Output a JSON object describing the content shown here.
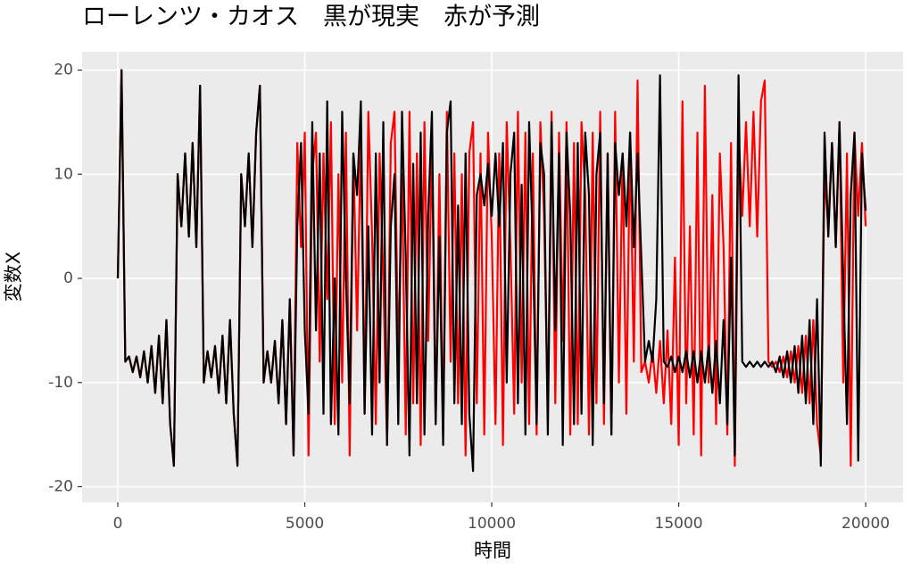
{
  "chart_data": {
    "type": "line",
    "title": "ローレンツ・カオス　黒が現実　赤が予測",
    "x_label": "時間",
    "y_label": "変数X",
    "x": [
      0,
      100,
      200,
      300,
      400,
      500,
      600,
      700,
      800,
      900,
      1000,
      1100,
      1200,
      1300,
      1400,
      1500,
      1600,
      1700,
      1800,
      1900,
      2000,
      2100,
      2200,
      2300,
      2400,
      2500,
      2600,
      2700,
      2800,
      2900,
      3000,
      3100,
      3200,
      3300,
      3400,
      3500,
      3600,
      3700,
      3800,
      3900,
      4000,
      4100,
      4200,
      4300,
      4400,
      4500,
      4600,
      4700,
      4800,
      4900,
      5000,
      5100,
      5200,
      5300,
      5400,
      5500,
      5600,
      5700,
      5800,
      5900,
      6000,
      6100,
      6200,
      6300,
      6400,
      6500,
      6600,
      6700,
      6800,
      6900,
      7000,
      7100,
      7200,
      7300,
      7400,
      7500,
      7600,
      7700,
      7800,
      7900,
      8000,
      8100,
      8200,
      8300,
      8400,
      8500,
      8600,
      8700,
      8800,
      8900,
      9000,
      9100,
      9200,
      9300,
      9400,
      9500,
      9600,
      9700,
      9800,
      9900,
      10000,
      10100,
      10200,
      10300,
      10400,
      10500,
      10600,
      10700,
      10800,
      10900,
      11000,
      11100,
      11200,
      11300,
      11400,
      11500,
      11600,
      11700,
      11800,
      11900,
      12000,
      12100,
      12200,
      12300,
      12400,
      12500,
      12600,
      12700,
      12800,
      12900,
      13000,
      13100,
      13200,
      13300,
      13400,
      13500,
      13600,
      13700,
      13800,
      13900,
      14000,
      14100,
      14200,
      14300,
      14400,
      14500,
      14600,
      14700,
      14800,
      14900,
      15000,
      15100,
      15200,
      15300,
      15400,
      15500,
      15600,
      15700,
      15800,
      15900,
      16000,
      16100,
      16200,
      16300,
      16400,
      16500,
      16600,
      16700,
      16800,
      16900,
      17000,
      17100,
      17200,
      17300,
      17400,
      17500,
      17600,
      17700,
      17800,
      17900,
      18000,
      18100,
      18200,
      18300,
      18400,
      18500,
      18600,
      18700,
      18800,
      18900,
      19000,
      19100,
      19200,
      19300,
      19400,
      19500,
      19600,
      19700,
      19800,
      19900,
      20000
    ],
    "series": [
      {
        "color": "#ff0000",
        "values": [
          0,
          20,
          -8,
          -7.5,
          -9,
          -7.5,
          -9.5,
          -7,
          -10,
          -6.5,
          -11,
          -5.5,
          -12,
          -4,
          -14,
          -18,
          10,
          5,
          12,
          4,
          13,
          3,
          18.5,
          -10,
          -7,
          -9.5,
          -6.5,
          -11,
          -5.5,
          -12,
          -4,
          -13,
          -18,
          10,
          5,
          12,
          3,
          14,
          18.5,
          -10,
          -7,
          -10,
          -6,
          -12,
          -4,
          -14,
          -2,
          -17,
          13,
          3,
          14,
          -17,
          10,
          14,
          -8,
          12,
          -2,
          15,
          -14,
          10,
          -10,
          14,
          -17,
          12,
          -5,
          14,
          -13,
          16,
          4,
          -14,
          12,
          0,
          -16,
          13,
          16,
          -8,
          10,
          -15,
          16,
          -12,
          12,
          -16,
          15,
          -6,
          13,
          -14,
          10,
          -15,
          16,
          -8,
          12,
          -12,
          10,
          -17,
          12,
          15,
          -12,
          12,
          -15,
          14,
          4,
          -14,
          12,
          -16,
          15,
          3,
          -13,
          16,
          -10,
          14,
          -14,
          12,
          -15,
          15,
          6,
          -13,
          16,
          -12,
          14,
          -6,
          15,
          -15,
          13,
          -14,
          15,
          8,
          -15,
          14,
          -12,
          16,
          -14,
          12,
          -15,
          16,
          -10,
          12,
          -13,
          14,
          -8,
          19,
          -9,
          -8,
          -10,
          -7,
          -11,
          -6,
          -12,
          -5,
          -14,
          2,
          -16,
          17,
          -12,
          5,
          -15,
          14,
          -17,
          18.5,
          -10,
          8,
          -14,
          12,
          3,
          -15,
          13,
          -18,
          14,
          6,
          15,
          5,
          16,
          4,
          17,
          19,
          -8,
          -8.5,
          -8,
          -9,
          -7.5,
          -9.5,
          -7,
          -10,
          -6.5,
          -11,
          -5.5,
          -12,
          -4,
          -14,
          -17,
          10,
          5,
          13,
          3,
          15,
          -10,
          12,
          -18,
          14,
          6,
          13,
          5
        ]
      },
      {
        "color": "#000000",
        "values": [
          0,
          20,
          -8,
          -7.5,
          -9,
          -7.5,
          -9.5,
          -7,
          -10,
          -6.5,
          -11,
          -5.5,
          -12,
          -4,
          -14,
          -18,
          10,
          5,
          12,
          4,
          13,
          3,
          18.5,
          -10,
          -7,
          -9.5,
          -6.5,
          -11,
          -5.5,
          -12,
          -4,
          -13,
          -18,
          10,
          5,
          12,
          3,
          14,
          18.5,
          -10,
          -7,
          -10,
          -6,
          -12,
          -4,
          -14,
          -2,
          -17,
          5,
          13,
          -5,
          -13,
          15,
          -5,
          12,
          -13,
          17,
          -14,
          0,
          -15,
          16,
          0,
          -12,
          12,
          8,
          17,
          -13,
          5,
          -15,
          12,
          -10,
          15,
          -16,
          5,
          10,
          -14,
          16,
          2,
          -17,
          11,
          -12,
          14,
          -15,
          6,
          16,
          -14,
          4,
          -16,
          14,
          17,
          -12,
          7,
          -14,
          12,
          -13,
          -18.5,
          8,
          10,
          7,
          11,
          6,
          12,
          5,
          13,
          -10,
          10,
          14,
          -12,
          9,
          -15,
          15,
          3,
          -14,
          13,
          10,
          -15,
          15,
          -5,
          12,
          -16,
          14,
          6,
          -14,
          13,
          -13,
          14,
          8,
          -16,
          10,
          14,
          -12,
          12,
          -15,
          13,
          8,
          12,
          5,
          14,
          3,
          12,
          2,
          -8,
          -6,
          -8,
          -2,
          19.5,
          -8,
          -8.5,
          -7.5,
          -9,
          -7.5,
          -9,
          -7,
          -9.5,
          -7,
          -10,
          -7,
          -10,
          -6.5,
          -11,
          -6,
          -12,
          -4,
          -14,
          2,
          -17,
          19.5,
          -8,
          -8.5,
          -8,
          -8.5,
          -8,
          -8.5,
          -8,
          -8.5,
          -8,
          -9,
          -7.5,
          -9.5,
          -7,
          -10,
          -6.5,
          -11,
          -5.5,
          -12,
          -4,
          -14,
          -2,
          -18,
          14,
          4,
          13,
          3,
          15,
          0,
          -14,
          8,
          14,
          -17.5,
          12,
          6.5
        ]
      }
    ],
    "xlim": [
      -955,
      21000
    ],
    "ylim": [
      -21.5,
      21.76
    ],
    "xticks": [
      0,
      5000,
      10000,
      15000,
      20000
    ],
    "yticks": [
      -20,
      -10,
      0,
      10,
      20
    ],
    "grid": true
  }
}
